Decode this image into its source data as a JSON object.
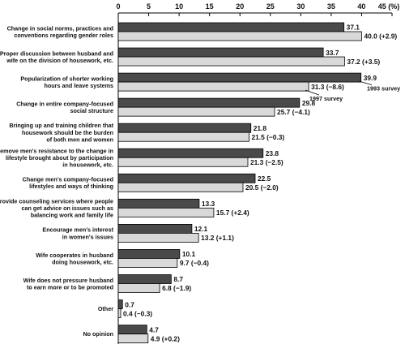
{
  "chart_data": {
    "type": "bar",
    "orientation": "horizontal",
    "xlim": [
      0,
      45
    ],
    "x_ticks": [
      "0",
      "5",
      "10",
      "15",
      "20",
      "25",
      "30",
      "35",
      "40",
      "45 (%)"
    ],
    "categories": [
      [
        "Change in social norms, practices and",
        "conventions regarding gender roles"
      ],
      [
        "Proper discussion between husband and",
        "wife on the division of housework, etc."
      ],
      [
        "Popularization of shorter working",
        "hours and leave systems"
      ],
      [
        "Change in entire company-focused",
        "social structure"
      ],
      [
        "Bringing up and training children that",
        "housework should be the burden",
        "of both men and women"
      ],
      [
        "Remove men's resistance to the change in",
        "lifestyle brought about by participation",
        "in housework, etc."
      ],
      [
        "Change men's company-focused",
        "lifestyles and ways of thinking"
      ],
      [
        "Provide counseling services where people",
        "can get advice on issues such as",
        "balancing work and family life"
      ],
      [
        "Encourage men's interest",
        "in women's issues"
      ],
      [
        "Wife cooperates in husband",
        "doing housework, etc."
      ],
      [
        "Wife does not pressure husband",
        "to earn more or to be promoted"
      ],
      [
        "Other"
      ],
      [
        "No opinion"
      ]
    ],
    "series": [
      {
        "name": "1993 survey",
        "color": "#4a4a4a",
        "values": [
          37.1,
          33.7,
          39.9,
          29.8,
          21.8,
          23.8,
          22.5,
          13.3,
          12.1,
          10.1,
          8.7,
          0.7,
          4.7
        ],
        "labels": [
          "37.1",
          "33.7",
          "39.9",
          "29.8",
          "21.8",
          "23.8",
          "22.5",
          "13.3",
          "12.1",
          "10.1",
          "8.7",
          "0.7",
          "4.7"
        ]
      },
      {
        "name": "1997 survey",
        "color": "#d9d9d9",
        "values": [
          40.0,
          37.2,
          31.3,
          25.7,
          21.5,
          21.3,
          20.5,
          15.7,
          13.2,
          9.7,
          6.8,
          0.4,
          4.9
        ],
        "labels": [
          "40.0 (+2.9)",
          "37.2 (+3.5)",
          "31.3 (−8.6)",
          "25.7 (−4.1)",
          "21.5 (−0.3)",
          "21.3 (−2.5)",
          "20.5 (−2.0)",
          "15.7 (+2.4)",
          "13.2 (+1.1)",
          "9.7 (−0.4)",
          "6.8 (−1.9)",
          "0.4 (−0.3)",
          "4.9 (+0.2)"
        ]
      }
    ],
    "annotations": [
      {
        "text": "1993 survey",
        "series": 0,
        "category": 2
      },
      {
        "text": "1997 survey",
        "series": 1,
        "category": 2
      }
    ],
    "grid": false,
    "legend": "none"
  }
}
